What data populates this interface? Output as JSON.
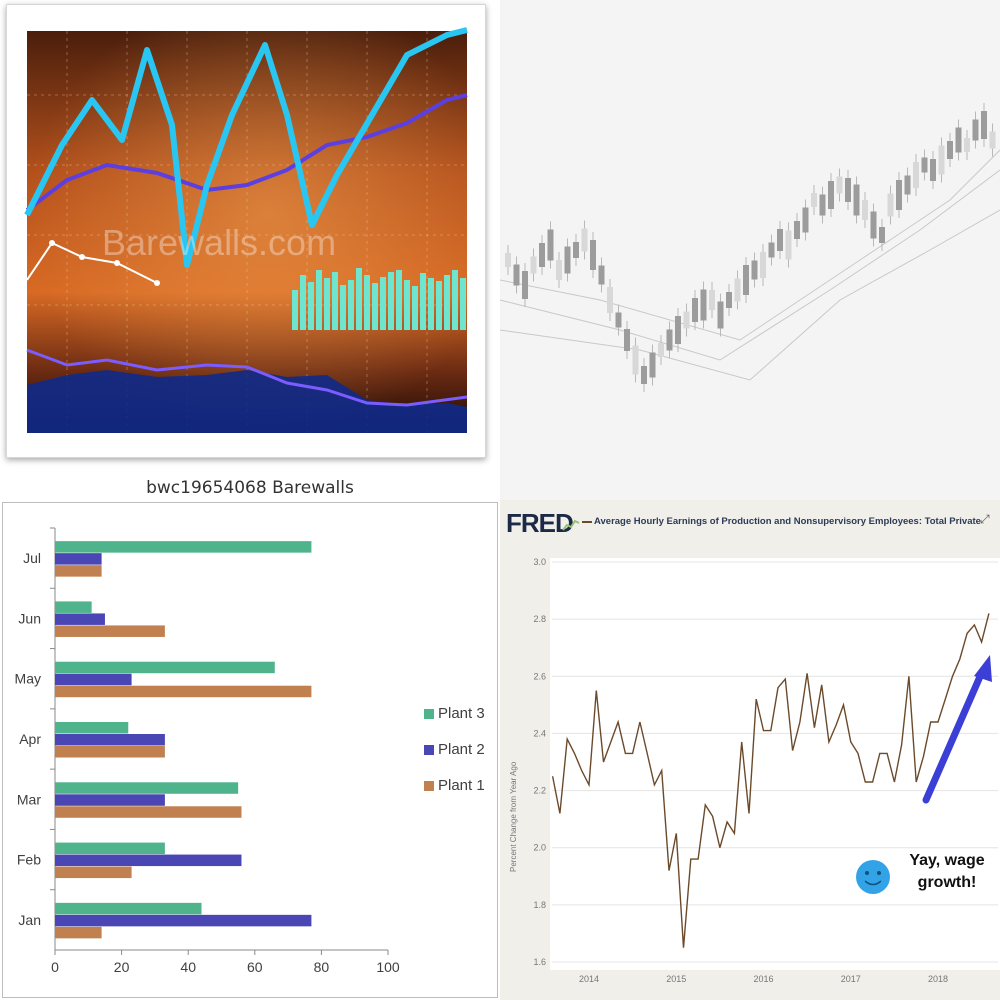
{
  "panels": {
    "top_left": {
      "watermark": "Barewalls.com",
      "caption": "bwc19654068 Barewalls",
      "colors": {
        "background_dark": "#2a1208",
        "background_warm": "#c0561c",
        "line_cyan": "#22c4f0",
        "bars_teal": "#5fe0c8",
        "line_purple": "#5a3fd8"
      }
    },
    "top_right": {
      "description_colors": {
        "candles": "#9a9a9a",
        "background": "#f4f4f4"
      }
    },
    "bottom_right": {
      "logo": "FRED",
      "title": "Average Hourly Earnings of Production and Nonsupervisory Employees: Total Private",
      "ylabel": "Percent Change from Year Ago",
      "annotation": "Yay, wage growth!",
      "expand_icon": "expand-icon",
      "colors": {
        "line": "#6b4a2b",
        "arrow": "#3b3fd6",
        "smiley": "#33a3e8"
      }
    }
  },
  "chart_data": [
    {
      "type": "bar",
      "orientation": "horizontal",
      "categories": [
        "Jan",
        "Feb",
        "Mar",
        "Apr",
        "May",
        "Jun",
        "Jul"
      ],
      "series": [
        {
          "name": "Plant 1",
          "color": "#c0804f",
          "values": [
            14,
            23,
            56,
            33,
            77,
            33,
            14
          ]
        },
        {
          "name": "Plant 2",
          "color": "#4a47b5",
          "values": [
            77,
            56,
            33,
            33,
            23,
            15,
            14
          ]
        },
        {
          "name": "Plant 3",
          "color": "#4fb38c",
          "values": [
            44,
            33,
            55,
            22,
            66,
            11,
            77
          ]
        }
      ],
      "xlim": [
        0,
        100
      ],
      "xticks": [
        0,
        20,
        40,
        60,
        80,
        100
      ],
      "legend": "right",
      "grid": false
    },
    {
      "type": "line",
      "title": "Average Hourly Earnings of Production and Nonsupervisory Employees: Total Private",
      "ylabel": "Percent Change from Year Ago",
      "ylim": [
        1.6,
        3.0
      ],
      "yticks": [
        "1.6",
        "1.8",
        "2.0",
        "2.2",
        "2.4",
        "2.6",
        "2.8",
        "3.0"
      ],
      "xticks": [
        "2014",
        "2015",
        "2016",
        "2017",
        "2018"
      ],
      "series": [
        {
          "name": "",
          "x_start": "2013-08",
          "freq": "monthly",
          "values": [
            2.25,
            2.12,
            2.38,
            2.33,
            2.27,
            2.22,
            2.55,
            2.3,
            2.37,
            2.44,
            2.33,
            2.33,
            2.44,
            2.33,
            2.22,
            2.27,
            1.92,
            2.05,
            1.65,
            1.96,
            1.96,
            2.15,
            2.11,
            2.0,
            2.09,
            2.05,
            2.37,
            2.12,
            2.52,
            2.41,
            2.41,
            2.56,
            2.59,
            2.34,
            2.44,
            2.61,
            2.42,
            2.57,
            2.37,
            2.43,
            2.5,
            2.37,
            2.33,
            2.23,
            2.23,
            2.33,
            2.33,
            2.23,
            2.36,
            2.6,
            2.23,
            2.32,
            2.44,
            2.44,
            2.52,
            2.6,
            2.66,
            2.75,
            2.78,
            2.72,
            2.82
          ]
        }
      ]
    }
  ]
}
